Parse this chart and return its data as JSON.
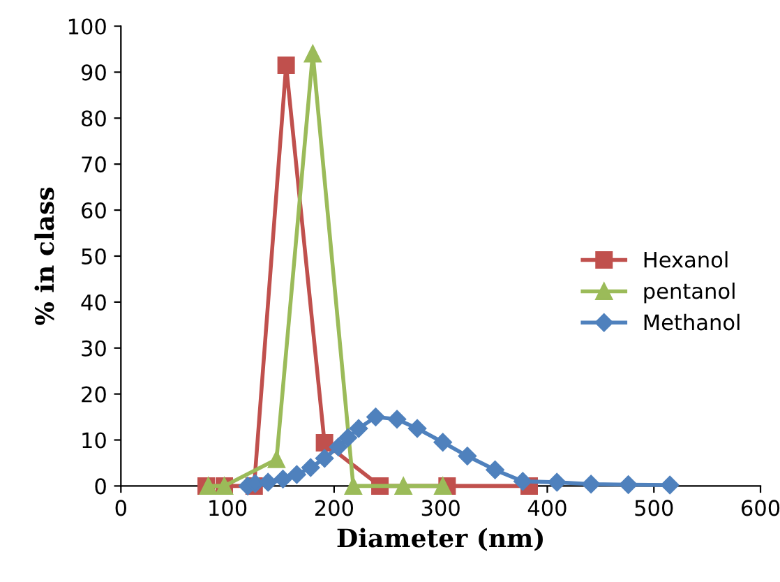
{
  "chart_data": {
    "type": "line",
    "xlabel": "Diameter (nm)",
    "ylabel": "% in class",
    "xlim": [
      0,
      600
    ],
    "xticks": [
      0,
      100,
      200,
      300,
      400,
      500,
      600
    ],
    "ylim": [
      0,
      100
    ],
    "yticks": [
      0,
      10,
      20,
      30,
      40,
      50,
      60,
      70,
      80,
      90,
      100
    ],
    "grid": false,
    "legend": "right",
    "series": [
      {
        "name": "Hexanol",
        "color": "#c0504d",
        "marker": "square",
        "x": [
          80,
          97,
          125,
          155,
          191,
          243,
          306,
          383
        ],
        "values": [
          0,
          0,
          0,
          91.5,
          9.4,
          0,
          0,
          0
        ]
      },
      {
        "name": "pentanol",
        "color": "#9bbb59",
        "marker": "triangle",
        "x": [
          82,
          97,
          146,
          180,
          218,
          265,
          302
        ],
        "values": [
          0,
          0,
          5.8,
          94,
          0,
          0,
          0
        ]
      },
      {
        "name": "Methanol",
        "color": "#4f81bd",
        "marker": "diamond",
        "x": [
          119,
          126,
          138,
          152,
          165,
          178,
          191,
          204,
          213,
          223,
          239,
          259,
          278,
          302,
          325,
          351,
          377,
          409,
          441,
          476,
          515
        ],
        "values": [
          0,
          0.5,
          0.8,
          1.5,
          2.5,
          4,
          6,
          8.5,
          10.5,
          12.5,
          15,
          14.5,
          12.5,
          9.5,
          6.5,
          3.5,
          1,
          0.8,
          0.4,
          0.3,
          0.2
        ]
      }
    ]
  }
}
